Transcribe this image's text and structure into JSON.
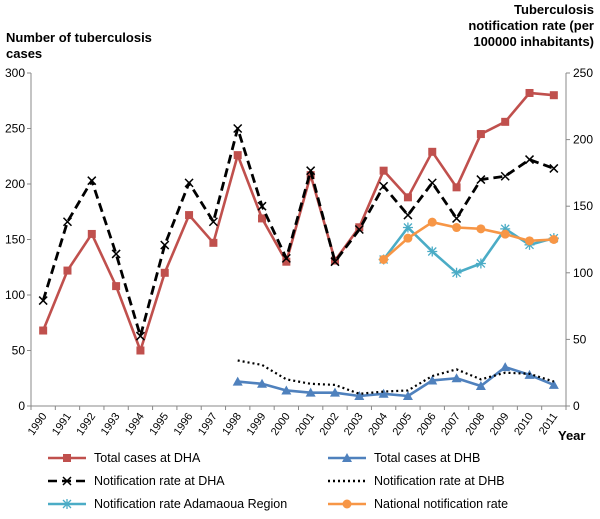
{
  "chart_data": {
    "type": "line",
    "ylabel_left": "Number of tuberculosis  cases",
    "ylabel_right": "Tuberculosis notification rate (per 100000 inhabitants)",
    "xlabel": "Year",
    "ylim_left": [
      0,
      300
    ],
    "ylim_right": [
      0,
      250
    ],
    "yticks_left": [
      0,
      50,
      100,
      150,
      200,
      250,
      300
    ],
    "yticks_right": [
      0,
      50,
      100,
      150,
      200,
      250
    ],
    "grid": false,
    "legend_position": "bottom",
    "categories": [
      "1990",
      "1991",
      "1992",
      "1993",
      "1994",
      "1995",
      "1996",
      "1997",
      "1998",
      "1999",
      "2000",
      "2001",
      "2002",
      "2003",
      "2004",
      "2005",
      "2006",
      "2007",
      "2008",
      "2009",
      "2010",
      "2011"
    ],
    "series": [
      {
        "name": "Total cases at DHA",
        "axis": "left",
        "color": "#c0504d",
        "dash": "solid",
        "marker": "square",
        "values": [
          68,
          122,
          155,
          108,
          50,
          120,
          172,
          147,
          226,
          169,
          130,
          208,
          131,
          161,
          212,
          188,
          229,
          197,
          245,
          256,
          282,
          280
        ]
      },
      {
        "name": "Total cases at DHB",
        "axis": "left",
        "color": "#4f81bd",
        "dash": "solid",
        "marker": "triangle",
        "values": [
          null,
          null,
          null,
          null,
          null,
          null,
          null,
          null,
          22,
          20,
          14,
          12,
          12,
          9,
          11,
          9,
          23,
          25,
          18,
          35,
          28,
          19
        ]
      },
      {
        "name": "Notification rate at DHA",
        "axis": "left",
        "color": "#000000",
        "dash": "dashed",
        "marker": "x",
        "values": [
          95,
          166,
          203,
          137,
          63,
          145,
          201,
          166,
          250,
          180,
          133,
          212,
          130,
          159,
          198,
          172,
          201,
          169,
          204,
          207,
          222,
          214
        ]
      },
      {
        "name": "Notification rate at DHB",
        "axis": "left",
        "color": "#000000",
        "dash": "dotted",
        "marker": "none",
        "values": [
          null,
          null,
          null,
          null,
          null,
          null,
          null,
          null,
          41,
          37,
          24,
          20,
          19,
          11,
          13,
          14,
          27,
          33,
          24,
          30,
          29,
          22
        ]
      },
      {
        "name": "Notification rate Adamaoua Region",
        "axis": "right",
        "color": "#4bacc6",
        "dash": "solid",
        "marker": "star",
        "values": [
          null,
          null,
          null,
          null,
          null,
          null,
          null,
          null,
          null,
          null,
          null,
          null,
          null,
          null,
          110,
          134,
          116,
          100,
          107,
          133,
          121,
          126
        ]
      },
      {
        "name": "National notification rate",
        "axis": "right",
        "color": "#f79646",
        "dash": "solid",
        "marker": "circle",
        "values": [
          null,
          null,
          null,
          null,
          null,
          null,
          null,
          null,
          null,
          null,
          null,
          null,
          null,
          null,
          110,
          126,
          138,
          134,
          133,
          129,
          124,
          125
        ]
      }
    ]
  }
}
